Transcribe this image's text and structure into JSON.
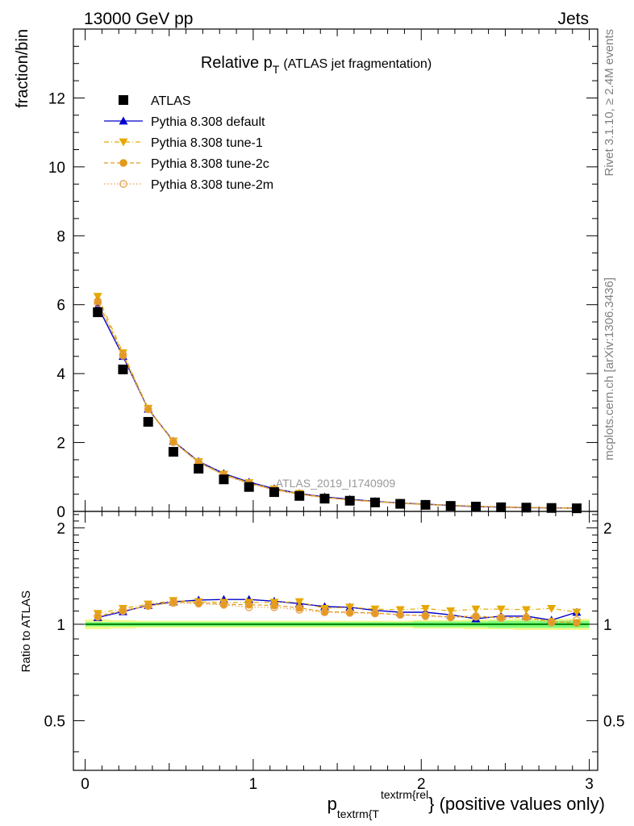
{
  "header": {
    "left": "13000 GeV pp",
    "right": "Jets"
  },
  "side_text": {
    "rivet": "Rivet 3.1.10, ≥ 2.4M events",
    "mcplots": "mcplots.cern.ch [arXiv:1306.3436]"
  },
  "colors": {
    "atlas": "#000000",
    "default": "#0000cc",
    "tune1": "#e6a800",
    "tune2c": "#e39a1a",
    "tune2m": "#e6a04a",
    "band_inner": "#7cfc7c",
    "band_outer": "#f0f98a",
    "ratio_ref": "#008000"
  },
  "chart_data": [
    {
      "type": "scatter",
      "title": "Relative p_T (ATLAS jet fragmentation)",
      "title_main": "Relative p",
      "title_sub": "T",
      "title_paren": "(ATLAS jet fragmentation)",
      "ylabel": "fraction/bin",
      "watermark": "ATLAS_2019_I1740909",
      "xlim": [
        -0.07,
        3.05
      ],
      "ylim": [
        0,
        14
      ],
      "yticks": [
        0,
        2,
        4,
        6,
        8,
        10,
        12
      ],
      "ytick_labels": [
        "0",
        "2",
        "4",
        "6",
        "8",
        "10",
        "12"
      ],
      "legend_position": "top-left",
      "x": [
        0.075,
        0.225,
        0.375,
        0.525,
        0.675,
        0.825,
        0.975,
        1.125,
        1.275,
        1.425,
        1.575,
        1.725,
        1.875,
        2.025,
        2.175,
        2.325,
        2.475,
        2.625,
        2.775,
        2.925
      ],
      "series": [
        {
          "name": "ATLAS",
          "key": "atlas",
          "marker": "square",
          "values": [
            5.78,
            4.12,
            2.6,
            1.73,
            1.24,
            0.93,
            0.71,
            0.56,
            0.45,
            0.37,
            0.31,
            0.26,
            0.22,
            0.19,
            0.16,
            0.14,
            0.12,
            0.11,
            0.1,
            0.09
          ]
        },
        {
          "name": "Pythia 8.308 default",
          "key": "default",
          "marker": "triangle-up",
          "line": "solid",
          "values": [
            5.95,
            4.5,
            2.97,
            2.04,
            1.45,
            1.1,
            0.85,
            0.66,
            0.52,
            0.42,
            0.35,
            0.29,
            0.24,
            0.21,
            0.17,
            0.14,
            0.125,
            0.11,
            0.1,
            0.095
          ]
        },
        {
          "name": "Pythia 8.308 tune-1",
          "key": "tune1",
          "marker": "triangle-down",
          "line": "dashdot",
          "values": [
            6.24,
            4.6,
            2.99,
            2.04,
            1.44,
            1.08,
            0.83,
            0.65,
            0.52,
            0.41,
            0.34,
            0.29,
            0.24,
            0.21,
            0.18,
            0.155,
            0.135,
            0.12,
            0.11,
            0.1
          ]
        },
        {
          "name": "Pythia 8.308 tune-2c",
          "key": "tune2c",
          "marker": "circle-filled",
          "line": "dashed",
          "values": [
            6.1,
            4.55,
            2.97,
            2.02,
            1.42,
            1.06,
            0.82,
            0.63,
            0.5,
            0.4,
            0.33,
            0.28,
            0.235,
            0.2,
            0.17,
            0.145,
            0.125,
            0.11,
            0.1,
            0.09
          ]
        },
        {
          "name": "Pythia 8.308 tune-2m",
          "key": "tune2m",
          "marker": "circle-open",
          "line": "dotted",
          "values": [
            6.05,
            4.52,
            2.96,
            2.01,
            1.42,
            1.05,
            0.8,
            0.62,
            0.49,
            0.4,
            0.33,
            0.28,
            0.235,
            0.2,
            0.17,
            0.145,
            0.125,
            0.11,
            0.1,
            0.09
          ]
        }
      ]
    },
    {
      "type": "line",
      "ylabel": "Ratio to ATLAS",
      "xlabel_main": "p",
      "xlabel_sub": "textrm{T",
      "xlabel_sup": "textrm{rel",
      "xlabel_tail": "} (positive values only)",
      "xlim": [
        -0.07,
        3.05
      ],
      "ylim": [
        0.35,
        2.25
      ],
      "xticks": [
        0,
        1,
        2,
        3
      ],
      "xtick_labels": [
        "0",
        "1",
        "2",
        "3"
      ],
      "yticks": [
        0.5,
        1,
        2
      ],
      "ytick_labels": [
        "0.5",
        "1",
        "2"
      ],
      "x": [
        0.075,
        0.225,
        0.375,
        0.525,
        0.675,
        0.825,
        0.975,
        1.125,
        1.275,
        1.425,
        1.575,
        1.725,
        1.875,
        2.025,
        2.175,
        2.325,
        2.475,
        2.625,
        2.775,
        2.925
      ],
      "band_inner": [
        0.015,
        0.015,
        0.015,
        0.015,
        0.015,
        0.015,
        0.015,
        0.015,
        0.015,
        0.015,
        0.015,
        0.015,
        0.015,
        0.02,
        0.02,
        0.02,
        0.025,
        0.025,
        0.025,
        0.025
      ],
      "band_outer": [
        0.035,
        0.03,
        0.025,
        0.025,
        0.025,
        0.025,
        0.025,
        0.025,
        0.025,
        0.025,
        0.025,
        0.025,
        0.025,
        0.03,
        0.03,
        0.035,
        0.035,
        0.04,
        0.04,
        0.04
      ],
      "series": [
        {
          "name": "Pythia 8.308 default",
          "key": "default",
          "marker": "triangle-up",
          "line": "solid",
          "values": [
            1.05,
            1.095,
            1.145,
            1.175,
            1.19,
            1.195,
            1.195,
            1.18,
            1.16,
            1.135,
            1.13,
            1.105,
            1.09,
            1.09,
            1.07,
            1.04,
            1.06,
            1.06,
            1.03,
            1.09
          ]
        },
        {
          "name": "Pythia 8.308 tune-1",
          "key": "tune1",
          "marker": "triangle-down",
          "line": "dashdot",
          "values": [
            1.08,
            1.12,
            1.155,
            1.185,
            1.175,
            1.17,
            1.17,
            1.17,
            1.175,
            1.12,
            1.13,
            1.115,
            1.11,
            1.12,
            1.1,
            1.115,
            1.115,
            1.11,
            1.12,
            1.09
          ]
        },
        {
          "name": "Pythia 8.308 tune-2c",
          "key": "tune2c",
          "marker": "circle-filled",
          "line": "dashed",
          "values": [
            1.06,
            1.105,
            1.14,
            1.175,
            1.165,
            1.155,
            1.15,
            1.145,
            1.125,
            1.095,
            1.09,
            1.085,
            1.07,
            1.065,
            1.055,
            1.06,
            1.05,
            1.05,
            1.02,
            1.01
          ]
        },
        {
          "name": "Pythia 8.308 tune-2m",
          "key": "tune2m",
          "marker": "circle-open",
          "line": "dotted",
          "values": [
            1.055,
            1.1,
            1.14,
            1.165,
            1.16,
            1.15,
            1.13,
            1.13,
            1.11,
            1.09,
            1.085,
            1.08,
            1.07,
            1.06,
            1.05,
            1.055,
            1.045,
            1.05,
            1.01,
            1.03
          ]
        }
      ]
    }
  ]
}
